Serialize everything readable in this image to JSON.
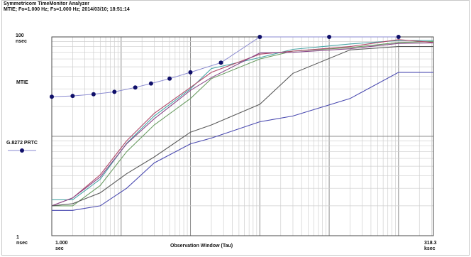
{
  "header": {
    "title": "Symmetricom TimeMonitor Analyzer",
    "subtitle": "MTIE; Fo=1.000 Hz; Fs=1.000 Hz; 2014/03/10; 18:51:14"
  },
  "y_axis": {
    "top_value": "100",
    "top_unit": "nsec",
    "middle_label": "MTIE",
    "bottom_value": "1",
    "bottom_unit": "nsec"
  },
  "x_axis": {
    "left_value": "1.000",
    "left_unit": "sec",
    "right_value": "318.3",
    "right_unit": "ksec",
    "title": "Observation Window (Tau)"
  },
  "legend": {
    "label": "G.8272 PRTC"
  },
  "chart_data": {
    "type": "line",
    "title": "",
    "xlabel": "Observation Window (Tau)",
    "ylabel": "MTIE",
    "x_scale": "log",
    "y_scale": "log",
    "xlim": [
      1,
      318300
    ],
    "ylim": [
      1,
      100
    ],
    "x_unit": "sec",
    "y_unit": "nsec",
    "grid": true,
    "legend_position": "left",
    "mask": {
      "name": "G.8272 PRTC",
      "color": "#1a1aa0",
      "x": [
        1,
        2,
        4,
        8,
        16,
        27,
        50,
        100,
        275,
        1000,
        10000,
        100000
      ],
      "y": [
        25,
        25.5,
        26.5,
        28,
        31,
        34,
        38,
        44,
        55,
        100,
        100,
        100
      ]
    },
    "series": [
      {
        "color": "#6a9c62",
        "x": [
          1,
          2,
          5,
          12,
          30,
          100,
          200,
          1000,
          3000,
          20000,
          100000,
          318300
        ],
        "y": [
          2.0,
          2.0,
          3.2,
          7.0,
          13,
          24,
          38,
          60,
          72,
          78,
          88,
          90
        ]
      },
      {
        "color": "#4aa6a6",
        "x": [
          1,
          2,
          5,
          12,
          30,
          100,
          200,
          1000,
          3000,
          20000,
          100000,
          318300
        ],
        "y": [
          2.3,
          2.3,
          3.7,
          8.5,
          16,
          30,
          48,
          62,
          75,
          85,
          92,
          92
        ]
      },
      {
        "color": "#b04a6a",
        "x": [
          1,
          2,
          5,
          12,
          30,
          100,
          200,
          1000,
          3000,
          20000,
          100000,
          318300
        ],
        "y": [
          2.0,
          2.4,
          4.1,
          9.0,
          17,
          31,
          44,
          67,
          72,
          80,
          94,
          88
        ]
      },
      {
        "color": "#8a4a8a",
        "x": [
          1,
          2,
          5,
          12,
          30,
          100,
          200,
          1000,
          3000,
          20000,
          100000,
          318300
        ],
        "y": [
          2.0,
          2.4,
          3.9,
          8.4,
          15,
          29,
          39,
          69,
          70,
          76,
          86,
          87
        ]
      },
      {
        "color": "#5a5a5a",
        "x": [
          1,
          2,
          5,
          12,
          30,
          100,
          200,
          1000,
          3000,
          20000,
          100000,
          318300
        ],
        "y": [
          2.0,
          2.1,
          2.7,
          4.2,
          6.2,
          11,
          13,
          21,
          43,
          74,
          80,
          80
        ]
      },
      {
        "color": "#4a4ab0",
        "x": [
          1,
          2,
          5,
          12,
          30,
          100,
          200,
          1000,
          3000,
          20000,
          100000,
          318300
        ],
        "y": [
          1.8,
          1.8,
          2.0,
          3.0,
          5.4,
          8.4,
          9.6,
          14,
          16,
          24,
          44,
          44
        ]
      }
    ]
  }
}
